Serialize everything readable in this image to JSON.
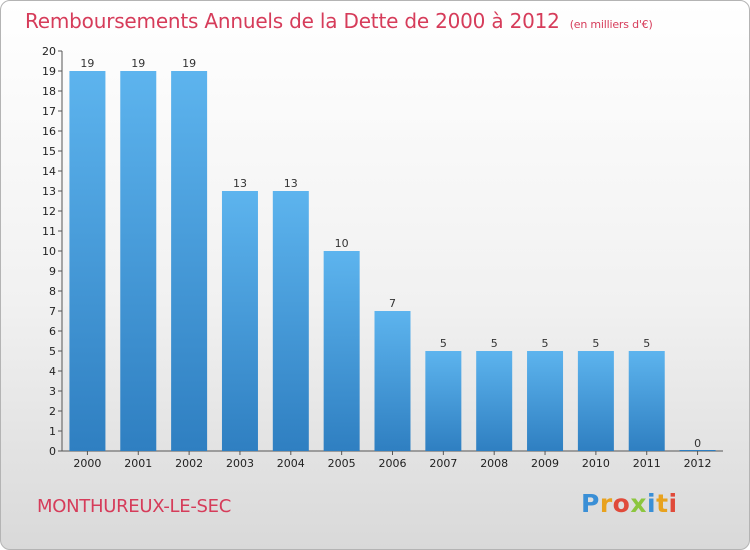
{
  "title": "Remboursements Annuels de la Dette de 2000 à 2012",
  "unit_note": "(en milliers d'€)",
  "commune": "MONTHUREUX-LE-SEC",
  "logo": {
    "letters": [
      "P",
      "r",
      "o",
      "x",
      "i",
      "t",
      "i"
    ],
    "colors": [
      "#3a8fd6",
      "#e8a21e",
      "#e04a3a",
      "#8cc63f",
      "#3a8fd6",
      "#e8a21e",
      "#e04a3a"
    ],
    "text": "Proxiti"
  },
  "colors": {
    "bar_top": "#5db4ee",
    "bar_bottom": "#2f7fc1",
    "title": "#d63c5a",
    "grid": "#c8c8c8"
  },
  "chart_data": {
    "type": "bar",
    "categories": [
      "2000",
      "2001",
      "2002",
      "2003",
      "2004",
      "2005",
      "2006",
      "2007",
      "2008",
      "2009",
      "2010",
      "2011",
      "2012"
    ],
    "values": [
      19,
      19,
      19,
      13,
      13,
      10,
      7,
      5,
      5,
      5,
      5,
      5,
      0
    ],
    "title": "Remboursements Annuels de la Dette de 2000 à 2012",
    "ylabel": "",
    "xlabel": "",
    "ylim": [
      0,
      20
    ],
    "yticks": [
      0,
      1,
      2,
      3,
      4,
      5,
      6,
      7,
      8,
      9,
      10,
      11,
      12,
      13,
      14,
      15,
      16,
      17,
      18,
      19,
      20
    ],
    "grid": false,
    "data_labels": true
  }
}
